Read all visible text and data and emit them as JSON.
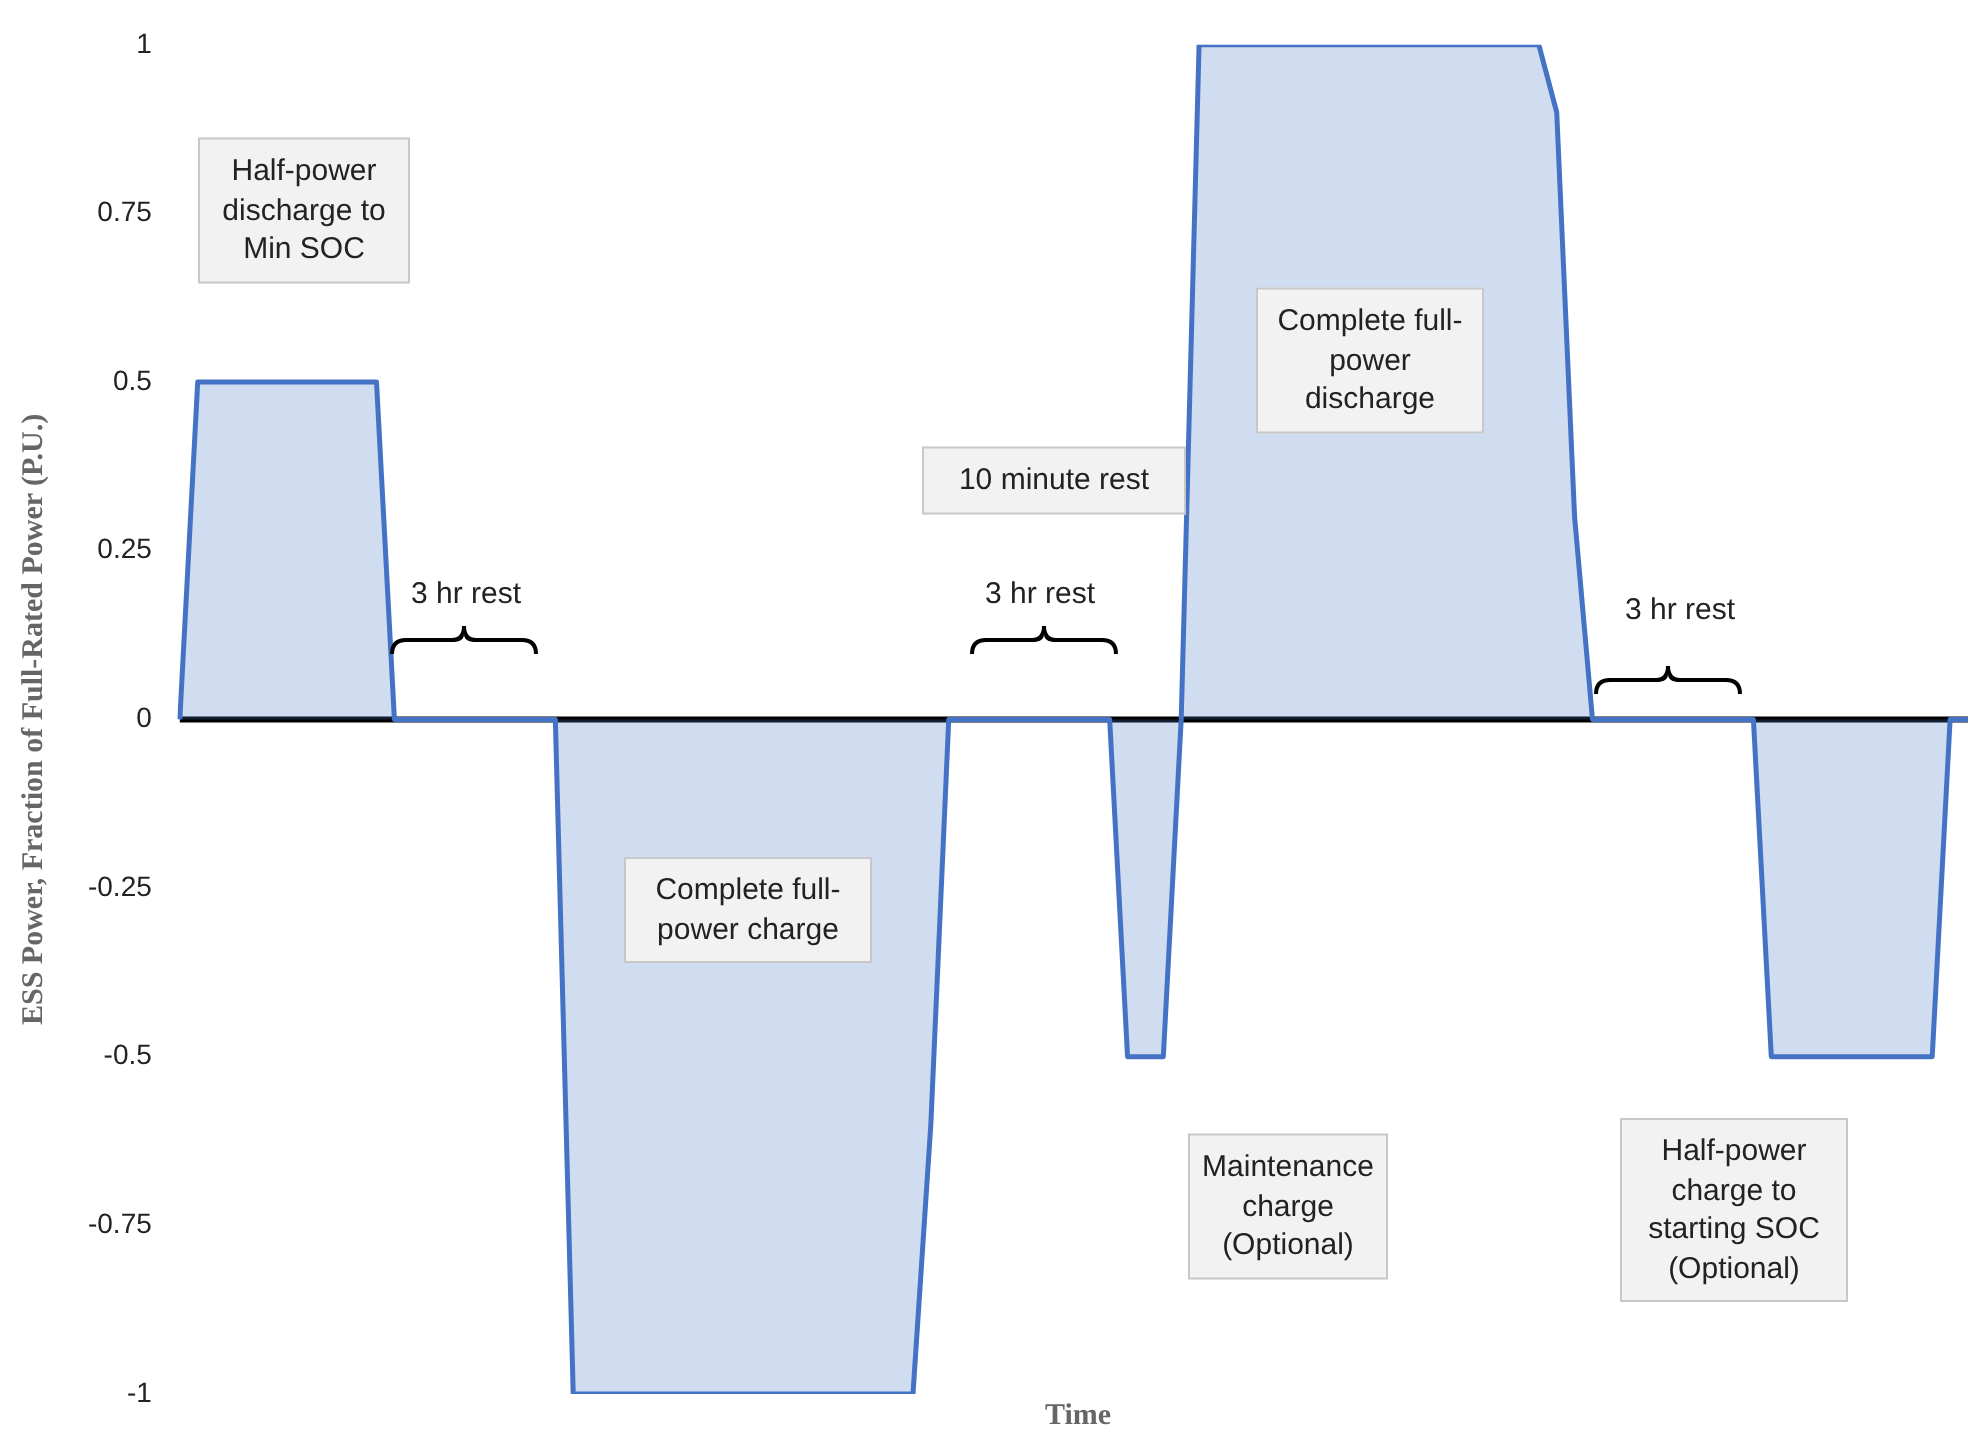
{
  "chart_data": {
    "type": "area",
    "xlabel": "Time",
    "ylabel": "ESS Power, Fraction of Full-Rated Power (P.U.)",
    "categories": [
      null,
      null,
      null,
      null,
      null,
      null,
      null,
      null,
      null,
      null,
      null,
      null,
      null,
      null,
      null,
      null,
      null,
      null,
      null,
      null,
      null,
      null,
      null,
      null,
      null,
      null,
      null,
      null,
      null,
      null,
      null,
      null,
      null,
      null,
      null,
      null,
      null,
      null,
      null,
      null,
      null,
      null,
      null,
      null,
      null,
      null,
      null,
      null,
      null,
      null,
      null,
      null,
      null,
      null,
      null,
      null,
      null,
      null,
      null,
      null,
      null,
      null,
      null,
      null,
      null,
      null,
      null,
      null,
      null,
      null,
      null,
      null,
      null,
      null,
      null,
      null,
      null,
      null,
      null,
      null,
      null,
      null,
      null,
      null,
      null,
      null,
      null,
      null,
      null,
      null,
      null,
      null,
      null,
      null,
      null,
      null,
      null,
      null,
      null,
      null,
      null
    ],
    "series": [
      {
        "color": "#4472c4",
        "values": [
          0,
          0.5,
          0.5,
          0.5,
          0.5,
          0.5,
          0.5,
          0.5,
          0.5,
          0.5,
          0.5,
          0.5,
          0,
          0,
          0,
          0,
          0,
          0,
          0,
          0,
          0,
          0,
          -1,
          -1,
          -1,
          -1,
          -1,
          -1,
          -1,
          -1,
          -1,
          -1,
          -1,
          -1,
          -1,
          -1,
          -1,
          -1,
          -1,
          -1,
          -1,
          -1,
          -0.6,
          0,
          0,
          0,
          0,
          0,
          0,
          0,
          0,
          0,
          0,
          -0.5,
          -0.5,
          -0.5,
          0,
          1,
          1,
          1,
          1,
          1,
          1,
          1,
          1,
          1,
          1,
          1,
          1,
          1,
          1,
          1,
          1,
          1,
          1,
          1,
          1,
          0.9,
          0.3,
          0,
          0,
          0,
          0,
          0,
          0,
          0,
          0,
          0,
          0,
          -0.5,
          -0.5,
          -0.5,
          -0.5,
          -0.5,
          -0.5,
          -0.5,
          -0.5,
          -0.5,
          -0.5,
          0,
          0
        ]
      }
    ],
    "ref_lines": [
      {
        "axis": "y",
        "value": 0,
        "color": "#000000",
        "line_style": "solid"
      }
    ],
    "ylim": [
      -1,
      1
    ],
    "yticks": [
      -1,
      -0.75,
      -0.5,
      -0.25,
      0,
      0.25,
      0.5,
      0.75,
      1
    ],
    "grid": false,
    "legend": false,
    "marker": "none",
    "line_style": "solid",
    "tick_labels": "y",
    "annotations": [
      "Half-power discharge to Min SOC",
      "3 hr rest",
      "Complete full-power charge",
      "3 hr rest",
      "10 minute rest",
      "Complete full-power discharge",
      "3 hr rest",
      "Maintenance charge (Optional)",
      "Half-power charge to starting SOC (Optional)"
    ]
  }
}
